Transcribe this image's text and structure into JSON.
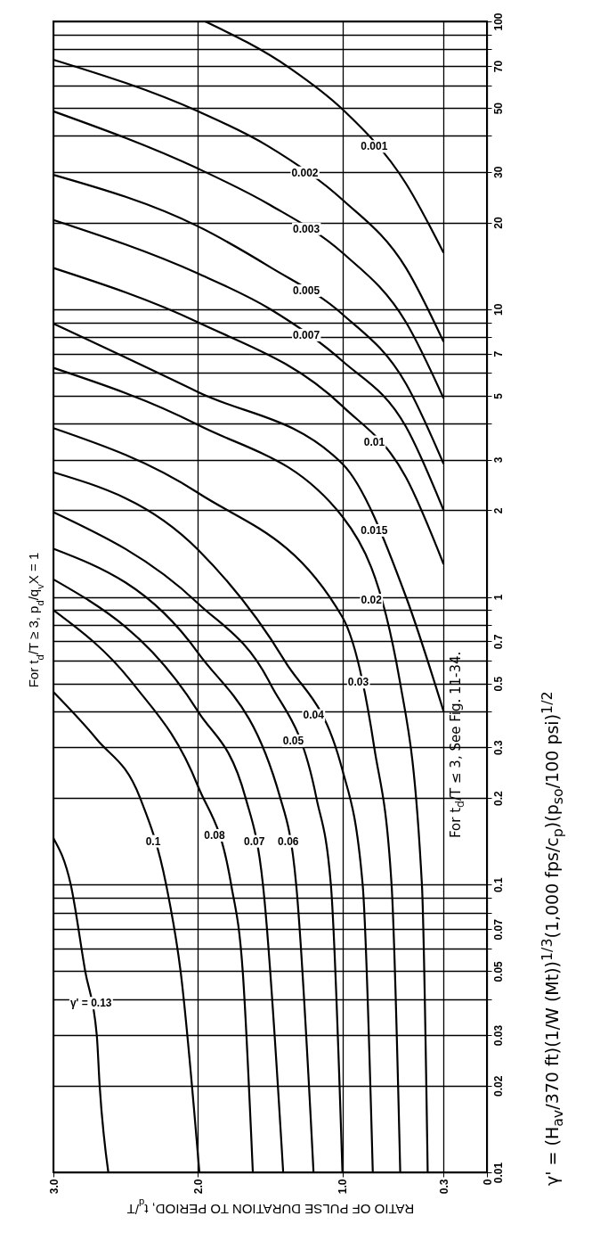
{
  "chart_data": {
    "type": "line",
    "xlabel": "RATIO OF PULSE DURATION TO PERIOD, t$_{d}$/T",
    "log": "y",
    "grid": true,
    "xlim": [
      3,
      0
    ],
    "xticks": [
      {
        "value": 3,
        "label": "3.0"
      },
      {
        "value": 2,
        "label": "2.0"
      },
      {
        "value": 1,
        "label": "1.0"
      },
      0.3,
      0
    ],
    "ylim": [
      0.01,
      100
    ],
    "yticks": [
      0.01,
      0.02,
      0.03,
      {
        "value": 0.04,
        "label": null
      },
      0.05,
      {
        "value": 0.06,
        "label": null
      },
      0.07,
      {
        "value": 0.08,
        "label": null
      },
      {
        "value": 0.09,
        "label": null
      },
      0.1,
      0.2,
      0.3,
      {
        "value": 0.4,
        "label": null
      },
      0.5,
      {
        "value": 0.6,
        "label": null
      },
      0.7,
      {
        "value": 0.8,
        "label": null
      },
      {
        "value": 0.9,
        "label": null
      },
      1,
      2,
      3,
      {
        "value": 4,
        "label": null
      },
      5,
      {
        "value": 6,
        "label": null
      },
      7,
      {
        "value": 8,
        "label": null
      },
      {
        "value": 9,
        "label": null
      },
      10,
      20,
      30,
      {
        "value": 40,
        "label": null
      },
      50,
      {
        "value": 60,
        "label": null
      },
      70,
      {
        "value": 80,
        "label": null
      },
      {
        "value": 90,
        "label": null
      },
      100
    ],
    "series": [
      {
        "name": "γ' = 0.13",
        "color": "#000000",
        "x": [
          2.62,
          2.68,
          2.7,
          2.78,
          2.88,
          3
        ],
        "values": [
          0.01,
          0.02,
          0.03,
          0.05,
          0.1,
          0.145
        ]
      },
      {
        "name": "0.1",
        "color": "#000000",
        "x": [
          1.99,
          2.12,
          2.22,
          2.4,
          2.7,
          3
        ],
        "values": [
          0.01,
          0.05,
          0.1,
          0.2,
          0.32,
          0.467
        ]
      },
      {
        "name": "0.08",
        "color": "#000000",
        "x": [
          1.62,
          1.69,
          1.77,
          2,
          2.45,
          3
        ],
        "values": [
          0.01,
          0.05,
          0.1,
          0.22,
          0.5,
          0.9
        ]
      },
      {
        "name": "0.07",
        "color": "#000000",
        "x": [
          1.41,
          1.55,
          1.67,
          2,
          3
        ],
        "values": [
          0.01,
          0.1,
          0.2,
          0.4,
          1.15
        ]
      },
      {
        "name": "0.06",
        "color": "#000000",
        "x": [
          1.2,
          1.32,
          1.43,
          2,
          3
        ],
        "values": [
          0.01,
          0.1,
          0.2,
          0.64,
          1.47
        ]
      },
      {
        "name": "0.05",
        "color": "#000000",
        "x": [
          1,
          1.08,
          1.18,
          1.5,
          2,
          3
        ],
        "values": [
          0.01,
          0.1,
          0.2,
          0.5,
          0.95,
          1.97
        ]
      },
      {
        "name": "0.04",
        "color": "#000000",
        "x": [
          0.79,
          0.86,
          1,
          1.4,
          2,
          3
        ],
        "values": [
          0.01,
          0.1,
          0.25,
          0.6,
          1.46,
          2.71
        ]
      },
      {
        "name": "0.03",
        "color": "#000000",
        "x": [
          0.6,
          0.66,
          0.78,
          1,
          2,
          3
        ],
        "values": [
          0.01,
          0.1,
          0.3,
          0.85,
          2.3,
          3.86
        ]
      },
      {
        "name": "0.02",
        "color": "#000000",
        "x": [
          0.41,
          0.45,
          0.6,
          1,
          2,
          3
        ],
        "values": [
          0.01,
          0.1,
          0.5,
          1.9,
          3.96,
          6.25
        ]
      },
      {
        "name": "0.015",
        "color": "#000000",
        "x": [
          0.3,
          0.56,
          1,
          2,
          3
        ],
        "values": [
          0.4,
          1,
          2.9,
          5.15,
          8.9
        ]
      },
      {
        "name": "0.01",
        "color": "#000000",
        "x": [
          0.3,
          0.56,
          1,
          2,
          3
        ],
        "values": [
          1.3,
          2.6,
          4.6,
          9,
          13.9
        ]
      },
      {
        "name": "0.007",
        "color": "#000000",
        "x": [
          0.3,
          0.56,
          1,
          1.5,
          2,
          3
        ],
        "values": [
          2,
          3.9,
          6.6,
          10,
          13.3,
          20.4
        ]
      },
      {
        "name": "0.005",
        "color": "#000000",
        "x": [
          0.3,
          0.56,
          1,
          1.5,
          2,
          3
        ],
        "values": [
          2.9,
          5.5,
          9.6,
          14,
          19.4,
          29.3
        ]
      },
      {
        "name": "0.003",
        "color": "#000000",
        "x": [
          0.3,
          0.56,
          1,
          1.5,
          2,
          3
        ],
        "values": [
          4.9,
          9,
          15.7,
          23,
          30.8,
          48.7
        ]
      },
      {
        "name": "0.002",
        "color": "#000000",
        "x": [
          0.3,
          0.56,
          1,
          1.52,
          2,
          3
        ],
        "values": [
          7.7,
          13.9,
          24,
          37,
          48.7,
          73.6
        ]
      },
      {
        "name": "0.001",
        "color": "#000000",
        "x": [
          0.3,
          0.56,
          1,
          1.36,
          1.95
        ],
        "values": [
          15.7,
          27.3,
          49.5,
          68.6,
          100
        ]
      }
    ],
    "annotations": [
      {
        "text": "For t$_{d}$/T ≥ 3, p$_{d}$/q$_{v}$X = 1",
        "x": 3,
        "y": 0.47
      },
      "For t$_{d}$/T ≤ 3, See Fig. 11-34.",
      "γ' = (H$_{av}$/370 ft)(1/W (Mt))$^{1/3}$(1,000 fps/c$_{p}$)(p$_{so}$/100 psi)$^{1/2}$"
    ]
  }
}
